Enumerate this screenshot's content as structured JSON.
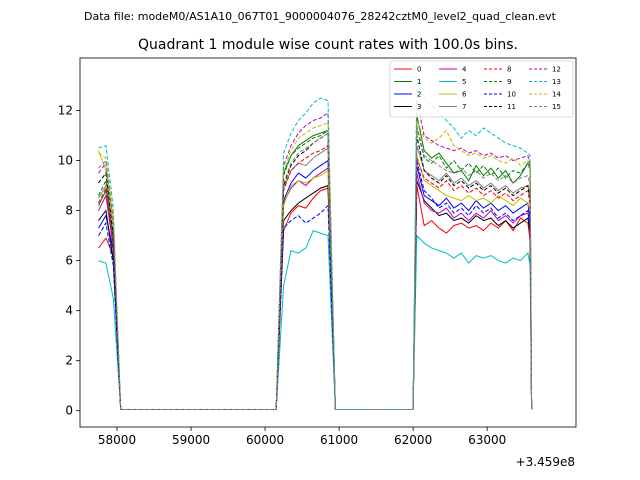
{
  "header": {
    "data_file": "Data file: modeM0/AS1A10_067T01_9000004076_28242cztM0_level2_quad_clean.evt"
  },
  "chart_data": {
    "type": "line",
    "title": "Quadrant 1 module wise count rates with 100.0s bins.",
    "xlabel": "",
    "ylabel": "",
    "xlim": [
      57500,
      64200
    ],
    "ylim": [
      -0.65,
      14.1
    ],
    "x_offset_label": "+3.459e8",
    "xticks": [
      58000,
      59000,
      60000,
      61000,
      62000,
      63000
    ],
    "xtick_labels": [
      "58000",
      "59000",
      "60000",
      "61000",
      "62000",
      "63000"
    ],
    "yticks": [
      0,
      2,
      4,
      6,
      8,
      10,
      12
    ],
    "ytick_labels": [
      "0",
      "2",
      "4",
      "6",
      "8",
      "10",
      "12"
    ],
    "grid": false,
    "legend_placement": "top-right",
    "legend_columns": 4,
    "series": [
      {
        "name": "0",
        "color": "#ff0000",
        "dash": "solid",
        "values": [
          6.5,
          6.9,
          6.2,
          0.05,
          0.05,
          0.05,
          0.05,
          0.05,
          0.05,
          0.05,
          0.05,
          0.05,
          0.05,
          0.05,
          0.05,
          0.05,
          0.05,
          0.05,
          0.05,
          0.05,
          0.05,
          7.2,
          7.9,
          8.2,
          8.1,
          8.5,
          8.8,
          8.9,
          0.05,
          0.05,
          0.05,
          0.05,
          0.05,
          0.05,
          0.05,
          0.05,
          0.05,
          0.05,
          0.05,
          0.05,
          0.05,
          0.05,
          9.0,
          7.4,
          7.6,
          7.3,
          7.1,
          7.4,
          7.5,
          7.3,
          7.4,
          7.2,
          7.5,
          7.3,
          7.6,
          7.2,
          7.7,
          7.5,
          6.8,
          0.05
        ]
      },
      {
        "name": "1",
        "color": "#008000",
        "dash": "solid",
        "values": [
          8.2,
          8.8,
          6.6,
          0.05,
          0.05,
          0.05,
          0.05,
          0.05,
          0.05,
          0.05,
          0.05,
          0.05,
          0.05,
          0.05,
          0.05,
          0.05,
          0.05,
          0.05,
          0.05,
          0.05,
          0.05,
          9.5,
          10.2,
          10.6,
          10.8,
          11.0,
          11.1,
          11.2,
          0.05,
          0.05,
          0.05,
          0.05,
          0.05,
          0.05,
          0.05,
          0.05,
          0.05,
          0.05,
          0.05,
          0.05,
          0.05,
          0.05,
          11.8,
          10.4,
          10.1,
          10.3,
          9.9,
          9.5,
          9.6,
          9.2,
          9.8,
          9.4,
          9.7,
          9.3,
          9.6,
          9.1,
          9.4,
          9.9,
          9.8,
          0.05
        ]
      },
      {
        "name": "2",
        "color": "#0000ff",
        "dash": "solid",
        "values": [
          7.3,
          7.8,
          6.4,
          0.05,
          0.05,
          0.05,
          0.05,
          0.05,
          0.05,
          0.05,
          0.05,
          0.05,
          0.05,
          0.05,
          0.05,
          0.05,
          0.05,
          0.05,
          0.05,
          0.05,
          0.05,
          8.4,
          9.1,
          9.5,
          9.3,
          9.6,
          9.8,
          10.0,
          0.05,
          0.05,
          0.05,
          0.05,
          0.05,
          0.05,
          0.05,
          0.05,
          0.05,
          0.05,
          0.05,
          0.05,
          0.05,
          0.05,
          9.8,
          8.6,
          8.4,
          8.2,
          8.5,
          8.1,
          8.3,
          8.0,
          8.4,
          8.1,
          8.3,
          8.0,
          8.2,
          7.9,
          8.1,
          8.3,
          7.6,
          0.05
        ]
      },
      {
        "name": "3",
        "color": "#000000",
        "dash": "solid",
        "values": [
          7.6,
          8.0,
          6.0,
          0.05,
          0.05,
          0.05,
          0.05,
          0.05,
          0.05,
          0.05,
          0.05,
          0.05,
          0.05,
          0.05,
          0.05,
          0.05,
          0.05,
          0.05,
          0.05,
          0.05,
          0.05,
          7.6,
          8.0,
          8.3,
          8.5,
          8.7,
          8.9,
          9.0,
          0.05,
          0.05,
          0.05,
          0.05,
          0.05,
          0.05,
          0.05,
          0.05,
          0.05,
          0.05,
          0.05,
          0.05,
          0.05,
          0.05,
          9.2,
          8.4,
          8.1,
          7.8,
          7.9,
          7.6,
          7.7,
          7.5,
          7.8,
          7.6,
          7.7,
          7.4,
          7.6,
          7.3,
          7.5,
          7.7,
          7.1,
          0.05
        ]
      },
      {
        "name": "4",
        "color": "#bf00bf",
        "dash": "solid",
        "values": [
          8.0,
          8.6,
          6.5,
          0.05,
          0.05,
          0.05,
          0.05,
          0.05,
          0.05,
          0.05,
          0.05,
          0.05,
          0.05,
          0.05,
          0.05,
          0.05,
          0.05,
          0.05,
          0.05,
          0.05,
          0.05,
          8.3,
          8.9,
          9.2,
          9.0,
          9.3,
          9.5,
          9.7,
          0.05,
          0.05,
          0.05,
          0.05,
          0.05,
          0.05,
          0.05,
          0.05,
          0.05,
          0.05,
          0.05,
          0.05,
          0.05,
          0.05,
          9.5,
          8.3,
          8.0,
          7.9,
          8.1,
          7.7,
          7.9,
          7.6,
          7.9,
          7.7,
          8.0,
          7.6,
          7.8,
          7.5,
          7.8,
          7.9,
          7.4,
          0.05
        ]
      },
      {
        "name": "5",
        "color": "#00bfbf",
        "dash": "solid",
        "values": [
          6.0,
          5.9,
          4.5,
          0.05,
          0.05,
          0.05,
          0.05,
          0.05,
          0.05,
          0.05,
          0.05,
          0.05,
          0.05,
          0.05,
          0.05,
          0.05,
          0.05,
          0.05,
          0.05,
          0.05,
          0.05,
          5.0,
          6.4,
          6.3,
          6.5,
          7.2,
          7.1,
          7.0,
          0.05,
          0.05,
          0.05,
          0.05,
          0.05,
          0.05,
          0.05,
          0.05,
          0.05,
          0.05,
          0.05,
          0.05,
          0.05,
          0.05,
          7.0,
          6.7,
          6.5,
          6.4,
          6.3,
          6.1,
          6.3,
          5.9,
          6.2,
          6.1,
          6.2,
          6.0,
          5.9,
          6.1,
          6.0,
          6.3,
          5.8,
          0.05
        ]
      },
      {
        "name": "6",
        "color": "#bfbf00",
        "dash": "solid",
        "values": [
          10.4,
          9.6,
          7.4,
          0.05,
          0.05,
          0.05,
          0.05,
          0.05,
          0.05,
          0.05,
          0.05,
          0.05,
          0.05,
          0.05,
          0.05,
          0.05,
          0.05,
          0.05,
          0.05,
          0.05,
          0.05,
          8.2,
          9.0,
          9.2,
          9.1,
          9.3,
          9.4,
          9.6,
          0.05,
          0.05,
          0.05,
          0.05,
          0.05,
          0.05,
          0.05,
          0.05,
          0.05,
          0.05,
          0.05,
          0.05,
          0.05,
          0.05,
          10.2,
          9.2,
          9.0,
          8.8,
          8.6,
          8.5,
          8.4,
          8.6,
          8.4,
          8.5,
          8.3,
          8.6,
          8.4,
          8.2,
          8.5,
          8.3,
          8.0,
          0.05
        ]
      },
      {
        "name": "7",
        "color": "#808080",
        "dash": "solid",
        "values": [
          8.5,
          9.0,
          6.8,
          0.05,
          0.05,
          0.05,
          0.05,
          0.05,
          0.05,
          0.05,
          0.05,
          0.05,
          0.05,
          0.05,
          0.05,
          0.05,
          0.05,
          0.05,
          0.05,
          0.05,
          0.05,
          8.9,
          9.6,
          9.9,
          9.8,
          10.1,
          10.3,
          10.5,
          0.05,
          0.05,
          0.05,
          0.05,
          0.05,
          0.05,
          0.05,
          0.05,
          0.05,
          0.05,
          0.05,
          0.05,
          0.05,
          0.05,
          10.6,
          9.6,
          9.4,
          9.2,
          9.5,
          9.1,
          9.3,
          9.0,
          9.2,
          8.9,
          9.1,
          8.8,
          9.0,
          8.7,
          8.9,
          9.0,
          8.6,
          0.05
        ]
      },
      {
        "name": "8",
        "color": "#ff0000",
        "dash": "dashed",
        "values": [
          8.3,
          8.9,
          6.7,
          0.05,
          0.05,
          0.05,
          0.05,
          0.05,
          0.05,
          0.05,
          0.05,
          0.05,
          0.05,
          0.05,
          0.05,
          0.05,
          0.05,
          0.05,
          0.05,
          0.05,
          0.05,
          8.8,
          9.6,
          9.9,
          10.1,
          10.3,
          10.4,
          10.6,
          0.05,
          0.05,
          0.05,
          0.05,
          0.05,
          0.05,
          0.05,
          0.05,
          0.05,
          0.05,
          0.05,
          0.05,
          0.05,
          0.05,
          10.1,
          9.3,
          9.1,
          8.9,
          9.2,
          8.8,
          9.0,
          8.7,
          8.9,
          8.6,
          8.8,
          8.5,
          8.7,
          8.4,
          8.6,
          8.8,
          8.2,
          0.05
        ]
      },
      {
        "name": "9",
        "color": "#008000",
        "dash": "dashed",
        "values": [
          8.6,
          9.2,
          6.9,
          0.05,
          0.05,
          0.05,
          0.05,
          0.05,
          0.05,
          0.05,
          0.05,
          0.05,
          0.05,
          0.05,
          0.05,
          0.05,
          0.05,
          0.05,
          0.05,
          0.05,
          0.05,
          9.4,
          10.2,
          10.5,
          10.7,
          10.9,
          11.0,
          11.2,
          0.05,
          0.05,
          0.05,
          0.05,
          0.05,
          0.05,
          0.05,
          0.05,
          0.05,
          0.05,
          0.05,
          0.05,
          0.05,
          0.05,
          11.3,
          10.1,
          9.9,
          10.2,
          9.7,
          10.0,
          9.6,
          9.9,
          9.5,
          9.8,
          9.4,
          9.7,
          9.3,
          9.6,
          9.5,
          9.9,
          9.6,
          0.05
        ]
      },
      {
        "name": "10",
        "color": "#0000ff",
        "dash": "dashed",
        "values": [
          7.0,
          7.5,
          5.8,
          0.05,
          0.05,
          0.05,
          0.05,
          0.05,
          0.05,
          0.05,
          0.05,
          0.05,
          0.05,
          0.05,
          0.05,
          0.05,
          0.05,
          0.05,
          0.05,
          0.05,
          0.05,
          7.3,
          7.6,
          7.8,
          7.5,
          7.7,
          7.9,
          8.2,
          0.05,
          0.05,
          0.05,
          0.05,
          0.05,
          0.05,
          0.05,
          0.05,
          0.05,
          0.05,
          0.05,
          0.05,
          0.05,
          0.05,
          10.0,
          8.8,
          8.5,
          8.1,
          8.3,
          7.9,
          8.1,
          7.8,
          8.2,
          7.9,
          8.1,
          7.7,
          7.9,
          7.6,
          7.8,
          8.0,
          7.3,
          0.05
        ]
      },
      {
        "name": "11",
        "color": "#000000",
        "dash": "dashed",
        "values": [
          9.1,
          9.5,
          7.0,
          0.05,
          0.05,
          0.05,
          0.05,
          0.05,
          0.05,
          0.05,
          0.05,
          0.05,
          0.05,
          0.05,
          0.05,
          0.05,
          0.05,
          0.05,
          0.05,
          0.05,
          0.05,
          9.0,
          9.8,
          10.2,
          10.4,
          10.7,
          10.9,
          11.1,
          0.05,
          0.05,
          0.05,
          0.05,
          0.05,
          0.05,
          0.05,
          0.05,
          0.05,
          0.05,
          0.05,
          0.05,
          0.05,
          0.05,
          11.0,
          9.6,
          9.3,
          9.1,
          9.4,
          9.0,
          9.2,
          8.9,
          9.1,
          8.8,
          9.0,
          8.7,
          8.9,
          8.6,
          8.8,
          9.0,
          8.4,
          0.05
        ]
      },
      {
        "name": "12",
        "color": "#bf00bf",
        "dash": "dashed",
        "values": [
          9.5,
          9.9,
          7.6,
          0.05,
          0.05,
          0.05,
          0.05,
          0.05,
          0.05,
          0.05,
          0.05,
          0.05,
          0.05,
          0.05,
          0.05,
          0.05,
          0.05,
          0.05,
          0.05,
          0.05,
          0.05,
          9.8,
          10.6,
          11.1,
          11.4,
          11.6,
          11.7,
          11.9,
          0.05,
          0.05,
          0.05,
          0.05,
          0.05,
          0.05,
          0.05,
          0.05,
          0.05,
          0.05,
          0.05,
          0.05,
          0.05,
          0.05,
          12.4,
          11.0,
          10.8,
          10.6,
          10.5,
          10.4,
          10.5,
          10.3,
          10.4,
          10.2,
          10.3,
          10.1,
          10.2,
          10.0,
          10.1,
          10.2,
          9.8,
          0.05
        ]
      },
      {
        "name": "13",
        "color": "#00bfbf",
        "dash": "dashed",
        "values": [
          10.5,
          10.6,
          8.1,
          0.05,
          0.05,
          0.05,
          0.05,
          0.05,
          0.05,
          0.05,
          0.05,
          0.05,
          0.05,
          0.05,
          0.05,
          0.05,
          0.05,
          0.05,
          0.05,
          0.05,
          0.05,
          10.3,
          11.1,
          11.6,
          11.9,
          12.3,
          12.5,
          12.4,
          0.05,
          0.05,
          0.05,
          0.05,
          0.05,
          0.05,
          0.05,
          0.05,
          0.05,
          0.05,
          0.05,
          0.05,
          0.05,
          0.05,
          13.2,
          12.5,
          12.2,
          11.9,
          11.6,
          11.3,
          10.9,
          11.2,
          11.0,
          11.3,
          11.1,
          10.9,
          10.7,
          10.6,
          10.5,
          10.3,
          10.2,
          0.05
        ]
      },
      {
        "name": "14",
        "color": "#bfbf00",
        "dash": "dashed",
        "values": [
          10.3,
          10.1,
          7.8,
          0.05,
          0.05,
          0.05,
          0.05,
          0.05,
          0.05,
          0.05,
          0.05,
          0.05,
          0.05,
          0.05,
          0.05,
          0.05,
          0.05,
          0.05,
          0.05,
          0.05,
          0.05,
          9.6,
          10.4,
          10.9,
          11.1,
          11.3,
          11.4,
          11.5,
          0.05,
          0.05,
          0.05,
          0.05,
          0.05,
          0.05,
          0.05,
          0.05,
          0.05,
          0.05,
          0.05,
          0.05,
          0.05,
          0.05,
          11.6,
          10.9,
          10.7,
          10.9,
          11.2,
          10.6,
          10.4,
          10.2,
          10.3,
          10.1,
          10.2,
          10.0,
          9.9,
          10.1,
          9.8,
          10.0,
          9.7,
          0.05
        ]
      },
      {
        "name": "15",
        "color": "#808080",
        "dash": "dashed",
        "values": [
          9.7,
          10.0,
          7.4,
          0.05,
          0.05,
          0.05,
          0.05,
          0.05,
          0.05,
          0.05,
          0.05,
          0.05,
          0.05,
          0.05,
          0.05,
          0.05,
          0.05,
          0.05,
          0.05,
          0.05,
          0.05,
          9.1,
          9.9,
          10.3,
          10.5,
          10.7,
          10.9,
          11.1,
          0.05,
          0.05,
          0.05,
          0.05,
          0.05,
          0.05,
          0.05,
          0.05,
          0.05,
          0.05,
          0.05,
          0.05,
          0.05,
          0.05,
          11.4,
          10.2,
          10.0,
          9.8,
          9.6,
          9.5,
          9.7,
          9.4,
          9.6,
          9.3,
          9.5,
          9.2,
          9.4,
          9.1,
          9.3,
          9.4,
          9.0,
          0.05
        ]
      }
    ],
    "x": [
      57750,
      57850,
      57950,
      58050,
      58150,
      58250,
      58350,
      58450,
      58550,
      58650,
      58750,
      58850,
      58950,
      59050,
      59150,
      59250,
      59350,
      59450,
      59550,
      59650,
      60150,
      60250,
      60350,
      60450,
      60550,
      60650,
      60750,
      60850,
      60950,
      61050,
      61150,
      61250,
      61350,
      61450,
      61550,
      61650,
      61750,
      61850,
      61950,
      61970,
      61990,
      62000,
      62050,
      62150,
      62250,
      62350,
      62450,
      62550,
      62650,
      62750,
      62850,
      62950,
      63050,
      63150,
      63250,
      63350,
      63450,
      63550,
      63580,
      63600
    ]
  }
}
